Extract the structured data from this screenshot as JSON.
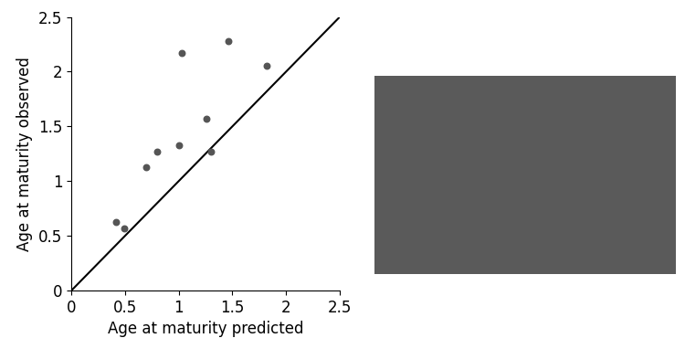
{
  "chart_data": {
    "type": "scatter",
    "x_label": "Age at maturity predicted",
    "y_label": "Age at maturity observed",
    "series": [
      {
        "type": "scatter",
        "color": "#555555",
        "marker": "o",
        "x": [
          0.42,
          0.49,
          0.7,
          0.8,
          1.0,
          1.03,
          1.26,
          1.3,
          1.46,
          1.82
        ],
        "values": [
          0.63,
          0.57,
          1.13,
          1.27,
          1.33,
          2.17,
          1.57,
          1.27,
          2.28,
          2.05
        ]
      },
      {
        "type": "line",
        "color": "#000000",
        "line_style": "solid",
        "x": [
          0,
          2.5
        ],
        "values": [
          0,
          2.5
        ]
      }
    ],
    "xlim": [
      0,
      2.5
    ],
    "xticks": [
      0,
      0.5,
      1,
      1.5,
      2,
      2.5
    ],
    "ylim": [
      0,
      2.5
    ],
    "yticks": [
      0,
      0.5,
      1,
      1.5,
      2,
      2.5
    ],
    "grid": false
  }
}
